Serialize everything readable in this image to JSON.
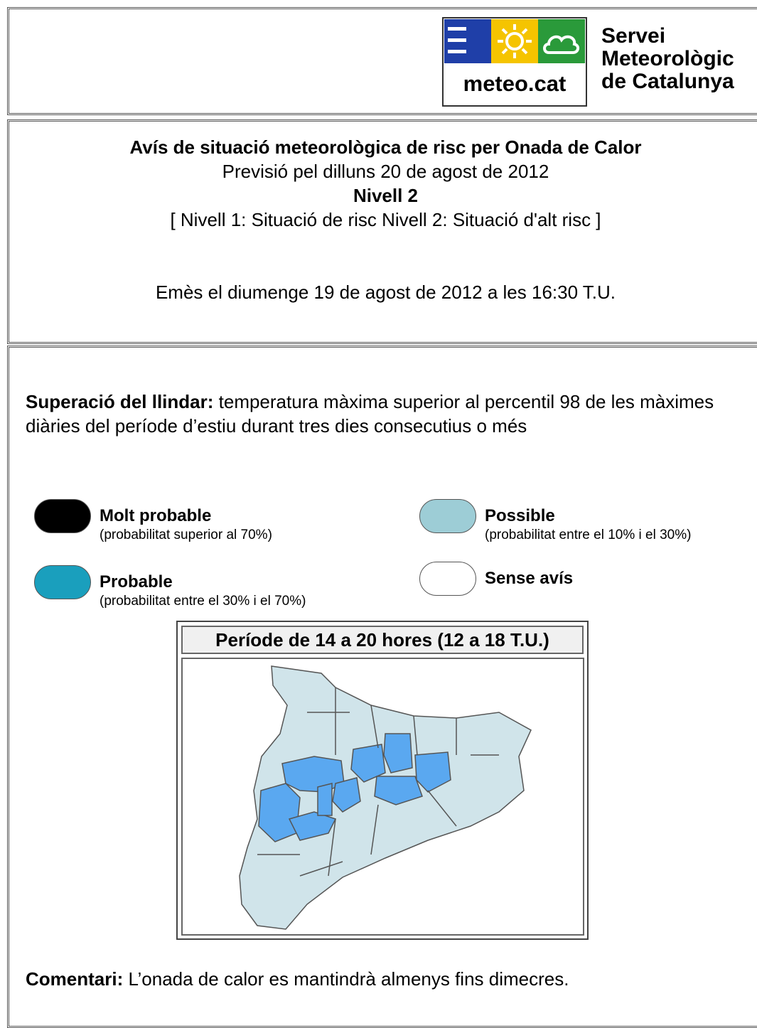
{
  "header": {
    "logo_text": "meteo.cat",
    "org_lines": [
      "Servei",
      "Meteorològic",
      "de Catalunya"
    ]
  },
  "notice": {
    "title": "Avís de situació meteorològica de risc per Onada de Calor",
    "forecast": "Previsió pel dilluns 20 de agost de 2012",
    "level": "Nivell 2",
    "levels_key": "[ Nivell 1: Situació de risc Nivell 2: Situació d'alt risc ]",
    "issued": "Emès el diumenge 19 de agost de 2012 a les 16:30 T.U."
  },
  "threshold": {
    "label": "Superació del llindar:",
    "text": " temperatura màxima superior al percentil 98 de les màximes diàries del període d’estiu durant tres dies consecutius o més"
  },
  "legend": [
    {
      "name": "Molt probable",
      "note": "(probabilitat superior al 70%)",
      "color": "#000000"
    },
    {
      "name": "Possible",
      "note": "(probabilitat entre el 10% i el 30%)",
      "color": "#9dcdd6"
    },
    {
      "name": "Probable",
      "note": "(probabilitat entre el 30% i el 70%)",
      "color": "#1a9fbd"
    },
    {
      "name": "Sense avís",
      "color": "#ffffff"
    }
  ],
  "map": {
    "title": "Període de 14 a 20 hores (12 a 18 T.U.)"
  },
  "comment": {
    "label": "Comentari:",
    "text": " L’onada de calor es mantindrà almenys fins dimecres."
  }
}
